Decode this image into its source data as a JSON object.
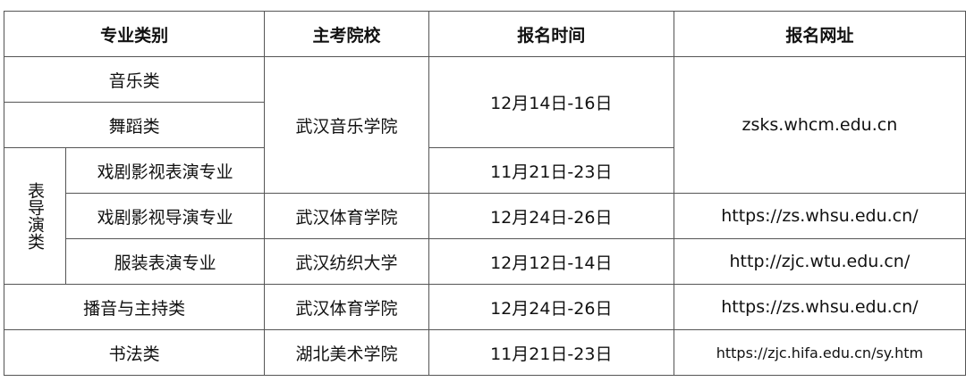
{
  "headers": [
    "专业类别",
    "主考院校",
    "报名时间",
    "报名网址"
  ],
  "rows": {
    "music": {
      "category": "音乐类",
      "school": "武汉音乐学院",
      "date": "12月14日-16日",
      "url": "zsks.whcm.edu.cn"
    },
    "dance": {
      "category": "舞蹈类"
    },
    "group": "表导演类",
    "drama_perf": {
      "category": "戏剧影视表演专业",
      "date": "11月21日-23日"
    },
    "drama_dir": {
      "category": "戏剧影视导演专业",
      "school": "武汉体育学院",
      "date": "12月24日-26日",
      "url": "https://zs.whsu.edu.cn/"
    },
    "costume": {
      "category": "服装表演专业",
      "school": "武汉纺织大学",
      "date": "12月12日-14日",
      "url": "http://zjc.wtu.edu.cn/"
    },
    "broadcast": {
      "category": "播音与主持类",
      "school": "武汉体育学院",
      "date": "12月24日-26日",
      "url": "https://zs.whsu.edu.cn/"
    },
    "calligraphy": {
      "category": "书法类",
      "school": "湖北美术学院",
      "date": "11月21日-23日",
      "url": "https://zjc.hifa.edu.cn/sy.htm"
    }
  }
}
